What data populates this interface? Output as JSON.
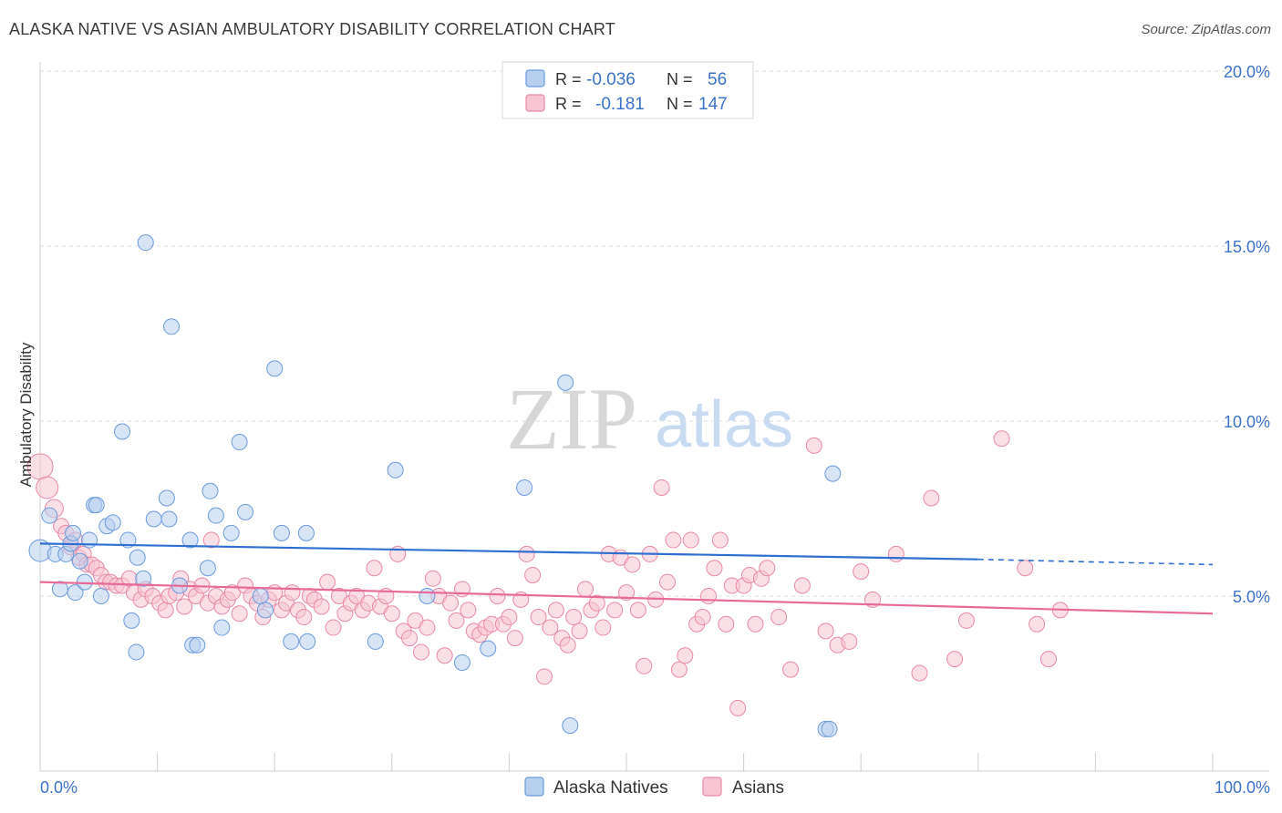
{
  "title": "ALASKA NATIVE VS ASIAN AMBULATORY DISABILITY CORRELATION CHART",
  "source": "Source: ZipAtlas.com",
  "watermark": {
    "zip": "ZIP",
    "atlas": "atlas"
  },
  "legend_top": {
    "rows": [
      {
        "r_label": "R =",
        "r_value": "-0.036",
        "n_label": "N =",
        "n_value": "56"
      },
      {
        "r_label": "R =",
        "r_value": "-0.181",
        "n_label": "N =",
        "n_value": "147"
      }
    ]
  },
  "legend_bottom": {
    "items": [
      "Alaska Natives",
      "Asians"
    ]
  },
  "colors": {
    "blue_fill": "#b8d0f0",
    "blue_stroke": "#6a9bdc",
    "blue_line": "#2f6fd0",
    "pink_fill": "#f7c4d3",
    "pink_stroke": "#e88aa8",
    "pink_line": "#e86a98",
    "axis_label": "#3b73c8",
    "grid": "#dddddd"
  },
  "chart_data": {
    "type": "scatter",
    "title": "ALASKA NATIVE VS ASIAN AMBULATORY DISABILITY CORRELATION CHART",
    "xlabel": "",
    "ylabel": "Ambulatory Disability",
    "xlim": [
      0,
      100
    ],
    "ylim": [
      0,
      20
    ],
    "x_tick_labels": [
      "0.0%",
      "100.0%"
    ],
    "y_tick_labels": [
      "5.0%",
      "10.0%",
      "15.0%",
      "20.0%"
    ],
    "y_ticks": [
      5,
      10,
      15,
      20
    ],
    "grid": true,
    "series": [
      {
        "name": "Alaska Natives",
        "r": -0.036,
        "n": 56,
        "trend": {
          "x0": 0,
          "y0": 6.5,
          "x1": 80,
          "y1": 6.05,
          "dash_to": 100,
          "dash_y": 5.9
        },
        "points": [
          [
            0.0,
            6.3
          ],
          [
            0.8,
            7.3
          ],
          [
            1.3,
            6.2
          ],
          [
            1.7,
            5.2
          ],
          [
            2.2,
            6.2
          ],
          [
            2.6,
            6.5
          ],
          [
            2.8,
            6.8
          ],
          [
            3.0,
            5.1
          ],
          [
            3.4,
            6.0
          ],
          [
            3.8,
            5.4
          ],
          [
            4.2,
            6.6
          ],
          [
            4.6,
            7.6
          ],
          [
            4.8,
            7.6
          ],
          [
            5.2,
            5.0
          ],
          [
            5.7,
            7.0
          ],
          [
            6.2,
            7.1
          ],
          [
            7.0,
            9.7
          ],
          [
            7.5,
            6.6
          ],
          [
            7.8,
            4.3
          ],
          [
            8.2,
            3.4
          ],
          [
            8.3,
            6.1
          ],
          [
            8.8,
            5.5
          ],
          [
            9.0,
            15.1
          ],
          [
            9.7,
            7.2
          ],
          [
            10.8,
            7.8
          ],
          [
            11.0,
            7.2
          ],
          [
            11.2,
            12.7
          ],
          [
            11.9,
            5.3
          ],
          [
            12.8,
            6.6
          ],
          [
            13.0,
            3.6
          ],
          [
            13.4,
            3.6
          ],
          [
            14.3,
            5.8
          ],
          [
            14.5,
            8.0
          ],
          [
            15.0,
            7.3
          ],
          [
            15.5,
            4.1
          ],
          [
            16.3,
            6.8
          ],
          [
            17.0,
            9.4
          ],
          [
            17.5,
            7.4
          ],
          [
            18.8,
            5.0
          ],
          [
            19.2,
            4.6
          ],
          [
            20.0,
            11.5
          ],
          [
            20.6,
            6.8
          ],
          [
            21.4,
            3.7
          ],
          [
            22.7,
            6.8
          ],
          [
            22.8,
            3.7
          ],
          [
            28.6,
            3.7
          ],
          [
            30.3,
            8.6
          ],
          [
            33.0,
            5.0
          ],
          [
            36.0,
            3.1
          ],
          [
            38.2,
            3.5
          ],
          [
            41.3,
            8.1
          ],
          [
            44.8,
            11.1
          ],
          [
            45.2,
            1.3
          ],
          [
            67.0,
            1.2
          ],
          [
            67.3,
            1.2
          ],
          [
            67.6,
            8.5
          ]
        ],
        "sizes_note": "most 16px diameter, first point larger"
      },
      {
        "name": "Asians",
        "r": -0.181,
        "n": 147,
        "trend": {
          "x0": 0,
          "y0": 5.4,
          "x1": 100,
          "y1": 4.5
        },
        "points": [
          [
            0.0,
            8.7
          ],
          [
            0.6,
            8.1
          ],
          [
            1.2,
            7.5
          ],
          [
            1.8,
            7.0
          ],
          [
            2.2,
            6.8
          ],
          [
            2.6,
            6.4
          ],
          [
            3.0,
            6.6
          ],
          [
            3.3,
            6.1
          ],
          [
            3.7,
            6.2
          ],
          [
            4.0,
            5.9
          ],
          [
            4.4,
            5.9
          ],
          [
            4.8,
            5.8
          ],
          [
            5.2,
            5.6
          ],
          [
            5.6,
            5.4
          ],
          [
            6.0,
            5.4
          ],
          [
            6.5,
            5.3
          ],
          [
            7.0,
            5.3
          ],
          [
            7.6,
            5.5
          ],
          [
            8.0,
            5.1
          ],
          [
            8.6,
            4.9
          ],
          [
            9.0,
            5.2
          ],
          [
            9.6,
            5.0
          ],
          [
            10.2,
            4.8
          ],
          [
            10.7,
            4.6
          ],
          [
            11.0,
            5.0
          ],
          [
            11.6,
            5.1
          ],
          [
            12.0,
            5.5
          ],
          [
            12.3,
            4.7
          ],
          [
            12.8,
            5.2
          ],
          [
            13.3,
            5.0
          ],
          [
            13.8,
            5.3
          ],
          [
            14.3,
            4.8
          ],
          [
            14.6,
            6.6
          ],
          [
            15.0,
            5.0
          ],
          [
            15.5,
            4.7
          ],
          [
            16.0,
            4.9
          ],
          [
            16.4,
            5.1
          ],
          [
            17.0,
            4.5
          ],
          [
            17.5,
            5.3
          ],
          [
            18.0,
            5.0
          ],
          [
            18.5,
            4.8
          ],
          [
            19.0,
            4.4
          ],
          [
            19.5,
            4.9
          ],
          [
            20.0,
            5.1
          ],
          [
            20.6,
            4.6
          ],
          [
            21.0,
            4.8
          ],
          [
            21.5,
            5.1
          ],
          [
            22.0,
            4.6
          ],
          [
            22.5,
            4.4
          ],
          [
            23.0,
            5.0
          ],
          [
            23.4,
            4.9
          ],
          [
            24.0,
            4.7
          ],
          [
            24.5,
            5.4
          ],
          [
            25.0,
            4.1
          ],
          [
            25.5,
            5.0
          ],
          [
            26.0,
            4.5
          ],
          [
            26.5,
            4.8
          ],
          [
            27.0,
            5.0
          ],
          [
            27.5,
            4.6
          ],
          [
            28.0,
            4.8
          ],
          [
            28.5,
            5.8
          ],
          [
            29.0,
            4.7
          ],
          [
            29.5,
            5.0
          ],
          [
            30.0,
            4.5
          ],
          [
            30.5,
            6.2
          ],
          [
            31.0,
            4.0
          ],
          [
            31.5,
            3.8
          ],
          [
            32.0,
            4.3
          ],
          [
            32.5,
            3.4
          ],
          [
            33.0,
            4.1
          ],
          [
            33.5,
            5.5
          ],
          [
            34.0,
            5.0
          ],
          [
            34.5,
            3.3
          ],
          [
            35.0,
            4.8
          ],
          [
            35.5,
            4.3
          ],
          [
            36.0,
            5.2
          ],
          [
            36.5,
            4.6
          ],
          [
            37.0,
            4.0
          ],
          [
            37.5,
            3.9
          ],
          [
            38.0,
            4.1
          ],
          [
            38.5,
            4.2
          ],
          [
            39.0,
            5.0
          ],
          [
            39.5,
            4.2
          ],
          [
            40.0,
            4.4
          ],
          [
            40.5,
            3.8
          ],
          [
            41.0,
            4.9
          ],
          [
            41.5,
            6.2
          ],
          [
            42.0,
            5.6
          ],
          [
            42.5,
            4.4
          ],
          [
            43.0,
            2.7
          ],
          [
            43.5,
            4.1
          ],
          [
            44.0,
            4.6
          ],
          [
            44.5,
            3.8
          ],
          [
            45.0,
            3.6
          ],
          [
            45.5,
            4.4
          ],
          [
            46.0,
            4.0
          ],
          [
            46.5,
            5.2
          ],
          [
            47.0,
            4.6
          ],
          [
            47.5,
            4.8
          ],
          [
            48.0,
            4.1
          ],
          [
            48.5,
            6.2
          ],
          [
            49.0,
            4.6
          ],
          [
            49.5,
            6.1
          ],
          [
            50.0,
            5.1
          ],
          [
            50.5,
            5.9
          ],
          [
            51.0,
            4.6
          ],
          [
            51.5,
            3.0
          ],
          [
            52.0,
            6.2
          ],
          [
            52.5,
            4.9
          ],
          [
            53.0,
            8.1
          ],
          [
            53.5,
            5.4
          ],
          [
            54.0,
            6.6
          ],
          [
            54.5,
            2.9
          ],
          [
            55.0,
            3.3
          ],
          [
            55.5,
            6.6
          ],
          [
            56.0,
            4.2
          ],
          [
            56.5,
            4.4
          ],
          [
            57.0,
            5.0
          ],
          [
            57.5,
            5.8
          ],
          [
            58.0,
            6.6
          ],
          [
            58.5,
            4.2
          ],
          [
            59.0,
            5.3
          ],
          [
            59.5,
            1.8
          ],
          [
            60.0,
            5.3
          ],
          [
            60.5,
            5.6
          ],
          [
            61.0,
            4.2
          ],
          [
            61.5,
            5.5
          ],
          [
            62.0,
            5.8
          ],
          [
            63.0,
            4.4
          ],
          [
            64.0,
            2.9
          ],
          [
            65.0,
            5.3
          ],
          [
            66.0,
            9.3
          ],
          [
            67.0,
            4.0
          ],
          [
            68.0,
            3.6
          ],
          [
            69.0,
            3.7
          ],
          [
            70.0,
            5.7
          ],
          [
            71.0,
            4.9
          ],
          [
            73.0,
            6.2
          ],
          [
            75.0,
            2.8
          ],
          [
            76.0,
            7.8
          ],
          [
            78.0,
            3.2
          ],
          [
            79.0,
            4.3
          ],
          [
            82.0,
            9.5
          ],
          [
            84.0,
            5.8
          ],
          [
            85.0,
            4.2
          ],
          [
            86.0,
            3.2
          ],
          [
            87.0,
            4.6
          ]
        ]
      }
    ]
  }
}
